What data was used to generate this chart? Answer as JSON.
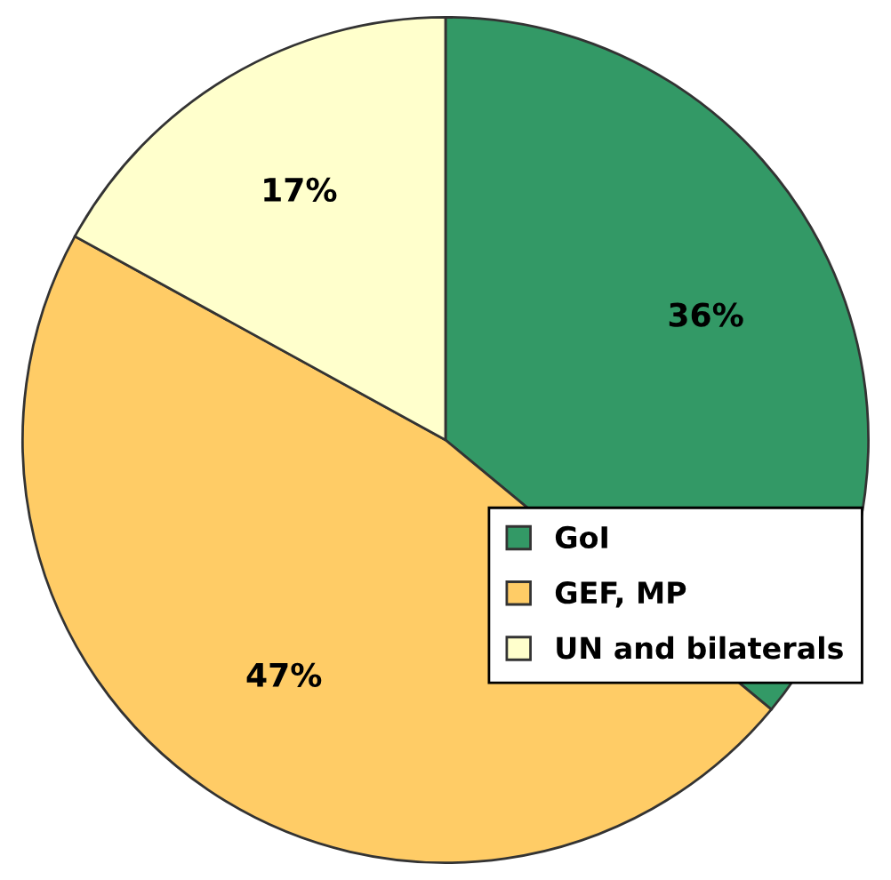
{
  "chart_data": {
    "type": "pie",
    "categories": [
      "GoI",
      "GEF, MP",
      "UN and bilaterals"
    ],
    "values": [
      36,
      47,
      17
    ],
    "colors": [
      "#339966",
      "#ffcc66",
      "#ffffcc"
    ],
    "value_labels": [
      "36%",
      "47%",
      "17%"
    ],
    "legend": "right"
  }
}
